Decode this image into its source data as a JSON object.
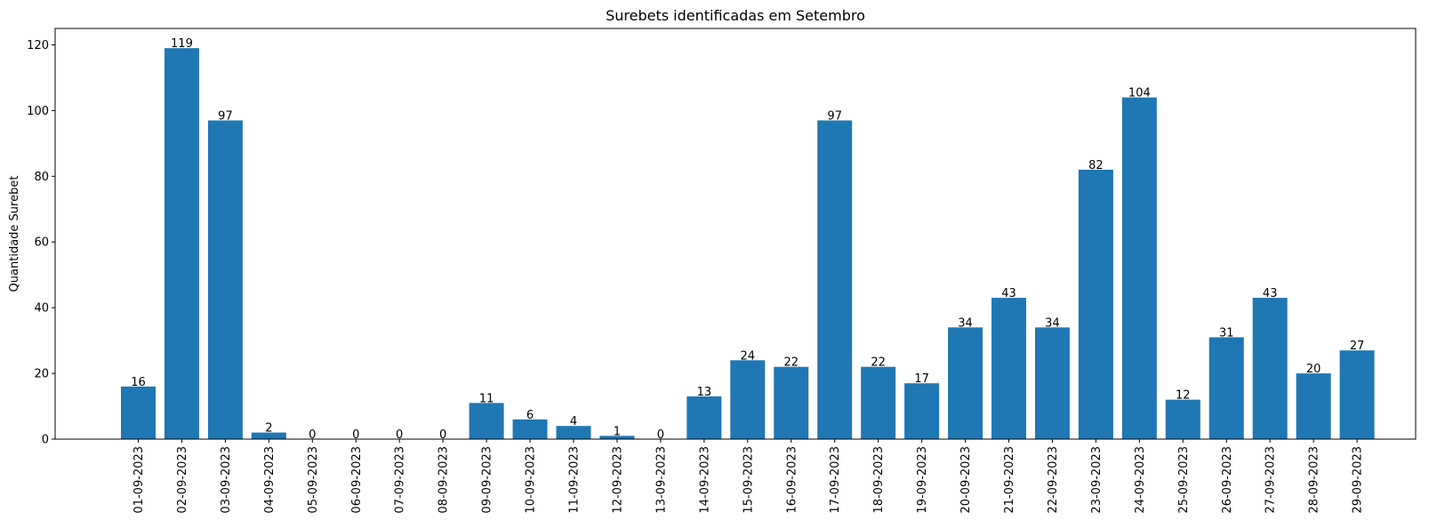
{
  "chart_data": {
    "type": "bar",
    "title": "Surebets identificadas em Setembro",
    "xlabel": "",
    "ylabel": "Quantidade Surebet",
    "ylim": [
      0,
      125
    ],
    "yticks": [
      0,
      20,
      40,
      60,
      80,
      100,
      120
    ],
    "color": "#1f77b4",
    "grid": false,
    "categories": [
      "01-09-2023",
      "02-09-2023",
      "03-09-2023",
      "04-09-2023",
      "05-09-2023",
      "06-09-2023",
      "07-09-2023",
      "08-09-2023",
      "09-09-2023",
      "10-09-2023",
      "11-09-2023",
      "12-09-2023",
      "13-09-2023",
      "14-09-2023",
      "15-09-2023",
      "16-09-2023",
      "17-09-2023",
      "18-09-2023",
      "19-09-2023",
      "20-09-2023",
      "21-09-2023",
      "22-09-2023",
      "23-09-2023",
      "24-09-2023",
      "25-09-2023",
      "26-09-2023",
      "27-09-2023",
      "28-09-2023",
      "29-09-2023"
    ],
    "values": [
      16,
      119,
      97,
      2,
      0,
      0,
      0,
      0,
      11,
      6,
      4,
      1,
      0,
      13,
      24,
      22,
      97,
      22,
      17,
      34,
      43,
      34,
      82,
      104,
      12,
      31,
      43,
      20,
      27
    ]
  }
}
